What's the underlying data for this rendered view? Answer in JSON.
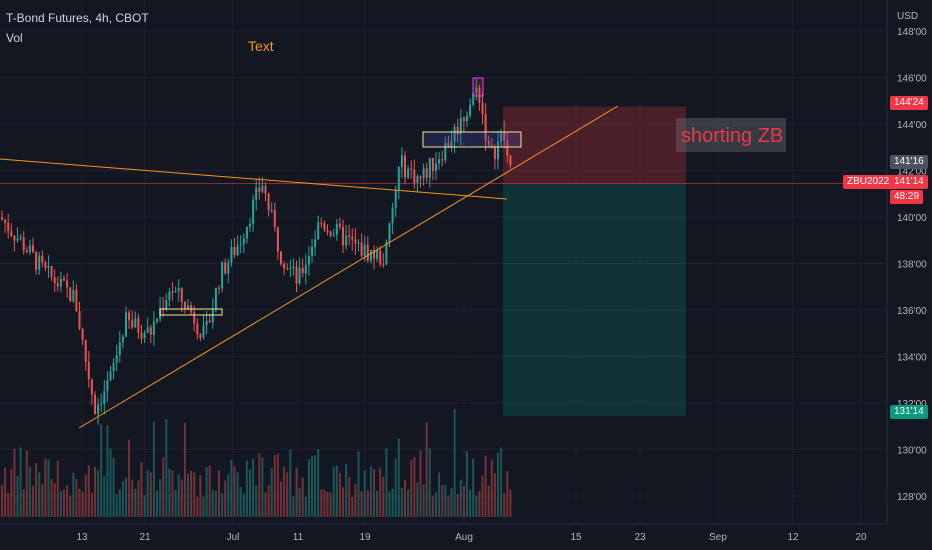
{
  "header": {
    "symbol": "T-Bond Futures, 4h, CBOT",
    "volume_label": "Vol",
    "currency": "USD"
  },
  "annotations": {
    "text_tool": "Text",
    "trade_label": "shorting ZB"
  },
  "price_tags": {
    "stop": "144'24",
    "last_upper": "141'16",
    "last": "141'14",
    "countdown": "48:29",
    "target": "131'14",
    "ticker": "ZBU2022"
  },
  "colors": {
    "background": "#131722",
    "up": "#26a69a",
    "down": "#ef5350",
    "trendline": "#f7931a",
    "stop_zone": "#f23645",
    "target_zone": "#089981"
  },
  "chart_data": {
    "type": "candlestick",
    "title": "T-Bond Futures, 4h, CBOT",
    "x_ticks": [
      "13",
      "21",
      "Jul",
      "11",
      "19",
      "Aug",
      "15",
      "23",
      "Sep",
      "12",
      "20"
    ],
    "y_ticks": [
      "148'00",
      "146'00",
      "144'00",
      "142'00",
      "140'00",
      "138'00",
      "136'00",
      "134'00",
      "132'00",
      "130'00",
      "128'00"
    ],
    "ylim": [
      127,
      149
    ],
    "grid": true,
    "position": {
      "direction": "short",
      "entry": 141.44,
      "stop": 144.75,
      "target": 131.44
    },
    "price_path": [
      {
        "t": 0,
        "p": 140.0
      },
      {
        "t": 20,
        "p": 139.0
      },
      {
        "t": 45,
        "p": 137.6
      },
      {
        "t": 75,
        "p": 136.5
      },
      {
        "t": 85,
        "p": 134.0
      },
      {
        "t": 95,
        "p": 131.8
      },
      {
        "t": 110,
        "p": 133.0
      },
      {
        "t": 125,
        "p": 135.5
      },
      {
        "t": 150,
        "p": 135.0
      },
      {
        "t": 170,
        "p": 137.0
      },
      {
        "t": 190,
        "p": 136.0
      },
      {
        "t": 205,
        "p": 134.8
      },
      {
        "t": 220,
        "p": 137.5
      },
      {
        "t": 240,
        "p": 139.0
      },
      {
        "t": 262,
        "p": 141.5
      },
      {
        "t": 280,
        "p": 138.5
      },
      {
        "t": 298,
        "p": 137.2
      },
      {
        "t": 320,
        "p": 139.8
      },
      {
        "t": 340,
        "p": 139.2
      },
      {
        "t": 360,
        "p": 138.6
      },
      {
        "t": 385,
        "p": 138.2
      },
      {
        "t": 400,
        "p": 142.3
      },
      {
        "t": 420,
        "p": 141.6
      },
      {
        "t": 445,
        "p": 143.0
      },
      {
        "t": 462,
        "p": 144.2
      },
      {
        "t": 478,
        "p": 145.6
      },
      {
        "t": 490,
        "p": 142.5
      },
      {
        "t": 503,
        "p": 143.6
      },
      {
        "t": 512,
        "p": 141.45
      }
    ]
  }
}
